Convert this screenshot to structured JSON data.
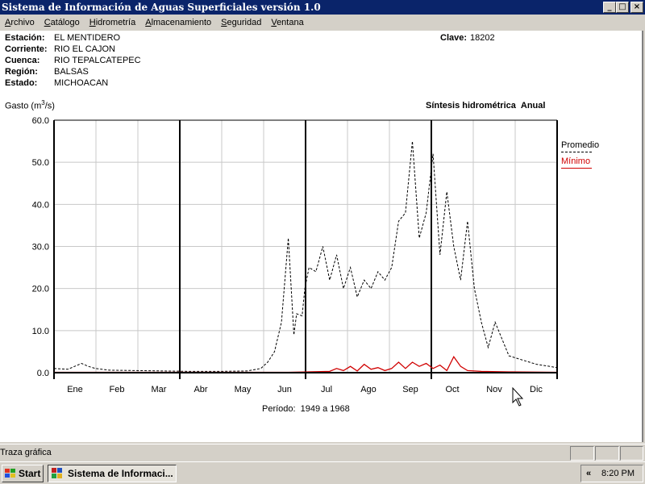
{
  "window": {
    "title": "Sistema de Información de Aguas Superficiales  versión 1.0",
    "controls": [
      "_",
      "□",
      "×"
    ]
  },
  "menu": [
    "Archivo",
    "Catálogo",
    "Hidrometría",
    "Almacenamiento",
    "Seguridad",
    "Ventana"
  ],
  "station": {
    "fields": [
      {
        "label": "Estación:",
        "value": "EL MENTIDERO"
      },
      {
        "label": "Corriente:",
        "value": "RIO EL CAJON"
      },
      {
        "label": "Cuenca:",
        "value": "RIO TEPALCATEPEC"
      },
      {
        "label": "Región:",
        "value": "BALSAS"
      },
      {
        "label": "Estado:",
        "value": "MICHOACAN"
      }
    ],
    "clave_label": "Clave:",
    "clave_value": "18202"
  },
  "chart_header": {
    "ylabel_prefix": "Gasto (m",
    "ylabel_sup": "3",
    "ylabel_suffix": "/s)",
    "title": "Síntesis hidrométrica",
    "mode": "Anual"
  },
  "chart_data": {
    "type": "line",
    "title": "Síntesis hidrométrica",
    "ylabel": "Gasto (m3/s)",
    "xlabel": "",
    "ylim": [
      0,
      60
    ],
    "yticks": [
      "0.0",
      "10.0",
      "20.0",
      "30.0",
      "40.0",
      "50.0",
      "60.0"
    ],
    "categories": [
      "Ene",
      "Feb",
      "Mar",
      "Abr",
      "May",
      "Jun",
      "Jul",
      "Ago",
      "Sep",
      "Oct",
      "Nov",
      "Dic"
    ],
    "grid": true,
    "legend_position": "right",
    "series": [
      {
        "name": "Promedio",
        "style": "dashed",
        "color": "#000000",
        "x": [
          0,
          10,
          20,
          25,
          30,
          40,
          60,
          80,
          100,
          120,
          140,
          150,
          155,
          160,
          165,
          170,
          174,
          176,
          180,
          182,
          185,
          190,
          195,
          200,
          205,
          210,
          215,
          220,
          225,
          230,
          235,
          240,
          245,
          250,
          255,
          260,
          265,
          270,
          275,
          280,
          285,
          290,
          295,
          300,
          305,
          310,
          315,
          320,
          330,
          340,
          350,
          365
        ],
        "values": [
          1.0,
          0.8,
          2.2,
          1.5,
          1.0,
          0.6,
          0.5,
          0.4,
          0.3,
          0.3,
          0.4,
          1.0,
          2.5,
          5.0,
          12.0,
          32.0,
          9.0,
          14.0,
          13.5,
          20.0,
          25.0,
          24.0,
          30.0,
          22.0,
          28.0,
          20.0,
          25.0,
          18.0,
          22.0,
          20.0,
          24.0,
          22.0,
          25.0,
          36.0,
          38.0,
          55.0,
          32.0,
          38.0,
          52.0,
          28.0,
          43.0,
          30.0,
          22.0,
          36.0,
          20.0,
          12.0,
          6.0,
          12.0,
          4.0,
          3.0,
          2.0,
          1.2
        ]
      },
      {
        "name": "Mínimo",
        "style": "solid",
        "color": "#d00000",
        "x": [
          0,
          60,
          120,
          170,
          200,
          205,
          210,
          215,
          220,
          225,
          230,
          235,
          240,
          245,
          250,
          255,
          260,
          265,
          270,
          275,
          280,
          285,
          290,
          295,
          300,
          310,
          330,
          365
        ],
        "values": [
          0.1,
          0.1,
          0.1,
          0.1,
          0.3,
          1.0,
          0.5,
          1.5,
          0.4,
          2.0,
          0.8,
          1.2,
          0.5,
          1.0,
          2.5,
          1.0,
          2.5,
          1.5,
          2.2,
          1.0,
          1.8,
          0.5,
          3.8,
          1.5,
          0.5,
          0.3,
          0.2,
          0.1
        ]
      }
    ]
  },
  "legend": [
    {
      "name": "Promedio",
      "color": "#000000"
    },
    {
      "name": "Mínimo",
      "color": "#d00000"
    }
  ],
  "periodo": {
    "label": "Período:",
    "value": "1949 a 1968"
  },
  "statusbar": {
    "text": "Traza gráfica"
  },
  "taskbar": {
    "start_label": "Start",
    "task_label": "Sistema de Informaci...",
    "tray_arrow": "«",
    "clock": "8:20 PM"
  }
}
